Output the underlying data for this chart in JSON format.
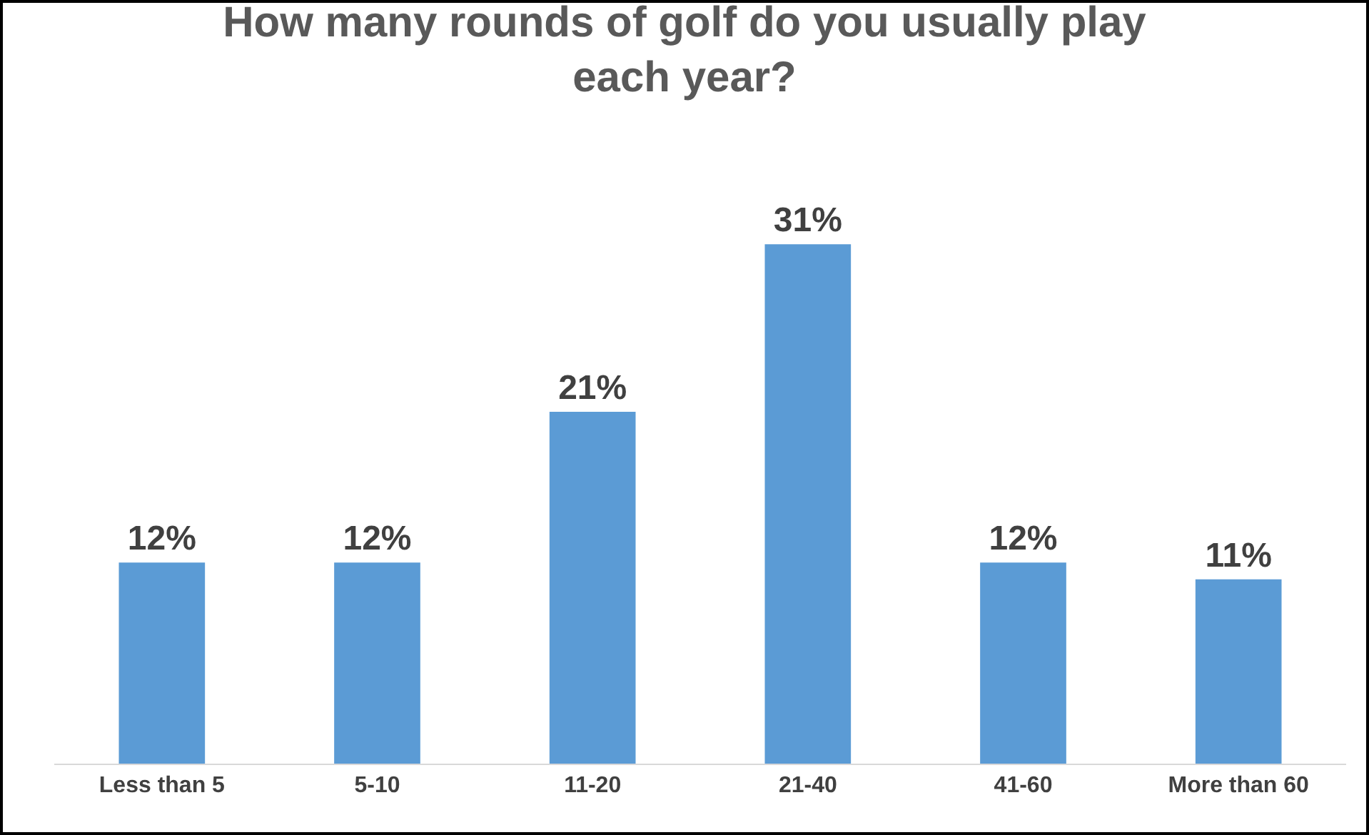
{
  "chart_data": {
    "type": "bar",
    "title": "How many rounds of golf do you usually play each year?",
    "categories": [
      "Less than 5",
      "5-10",
      "11-20",
      "21-40",
      "41-60",
      "More than 60"
    ],
    "values": [
      12,
      12,
      21,
      31,
      12,
      11
    ],
    "value_labels": [
      "12%",
      "12%",
      "21%",
      "31%",
      "12%",
      "11%"
    ],
    "color": "#5b9bd5"
  }
}
